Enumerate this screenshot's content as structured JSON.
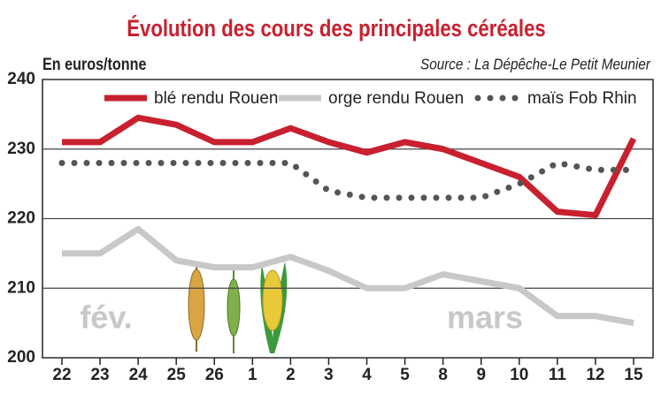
{
  "chart_data": {
    "type": "line",
    "title": "Évolution des cours des principales céréales",
    "y_label": "En euros/tonne",
    "source": "Source : La Dépêche-Le Petit Meunier",
    "annotations": [
      "fév.",
      "mars"
    ],
    "categories": [
      "22",
      "23",
      "24",
      "25",
      "26",
      "1",
      "2",
      "3",
      "4",
      "5",
      "8",
      "9",
      "10",
      "11",
      "12",
      "15"
    ],
    "series": [
      {
        "name": "blé rendu Rouen",
        "color": "#c8202f",
        "style": "solid",
        "values": [
          231,
          231,
          234.5,
          233.5,
          231,
          231,
          233,
          231,
          229.5,
          231,
          230,
          228,
          226,
          221,
          220.5,
          231.5
        ]
      },
      {
        "name": "orge rendu Rouen",
        "color": "#c8c8c8",
        "style": "solid",
        "values": [
          215,
          215,
          218.5,
          214,
          213,
          213,
          214.5,
          212.5,
          210,
          210,
          212,
          211,
          210,
          206,
          206,
          205
        ]
      },
      {
        "name": "maïs Fob Rhin",
        "color": "#555555",
        "style": "dotted",
        "values": [
          228,
          228,
          228,
          228,
          228,
          228,
          228,
          224,
          223,
          223,
          223,
          223,
          225,
          228,
          227,
          227
        ]
      }
    ],
    "ylim": [
      200,
      240
    ],
    "yticks": [
      200,
      210,
      220,
      230,
      240
    ],
    "grid": true
  }
}
